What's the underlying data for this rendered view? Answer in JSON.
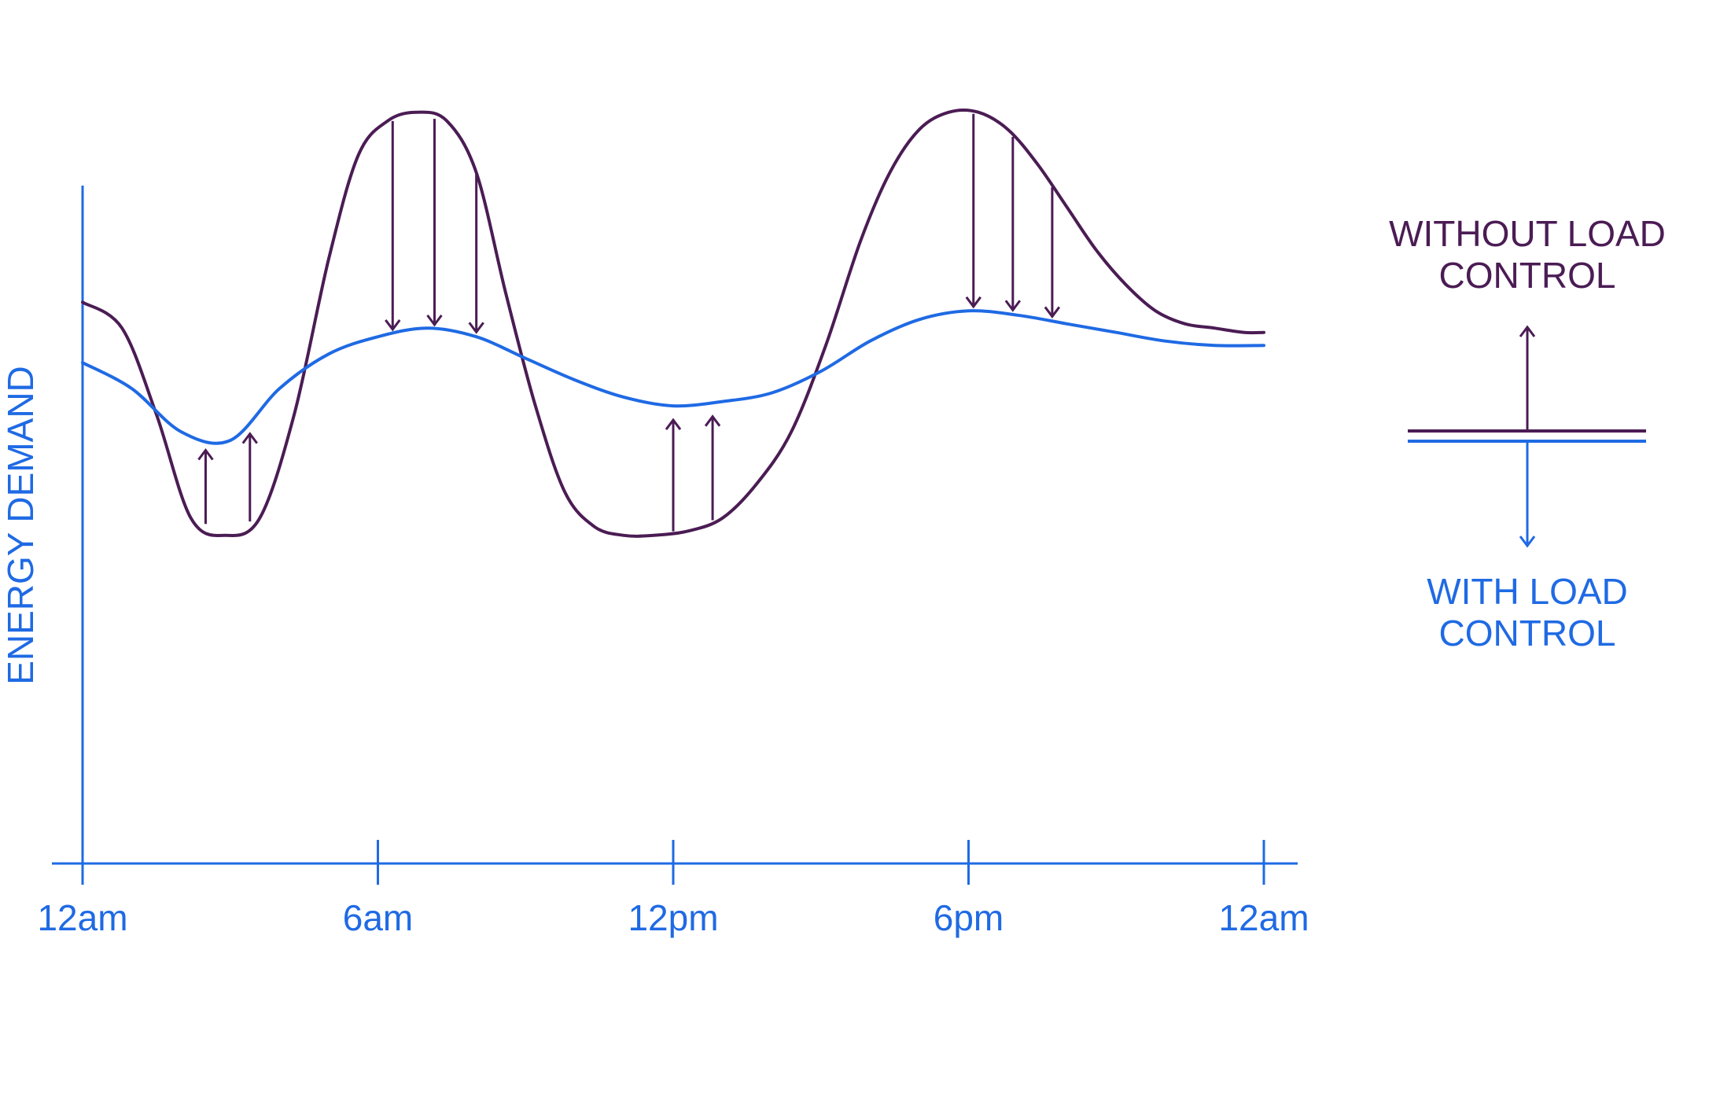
{
  "colors": {
    "without": "#4b1c54",
    "with": "#1f6ae4",
    "axis": "#1f6ae4"
  },
  "chart_data": {
    "type": "line",
    "title": "",
    "xlabel": "",
    "ylabel": "ENERGY DEMAND",
    "x_ticks": [
      "12am",
      "6am",
      "12pm",
      "6pm",
      "12am"
    ],
    "xlim": [
      0,
      24
    ],
    "ylim": [
      0,
      100
    ],
    "grid": false,
    "legend_position": "right",
    "series": [
      {
        "name": "WITHOUT LOAD CONTROL",
        "color": "#4b1c54",
        "x": [
          0,
          0.8,
          1.5,
          2.2,
          2.9,
          3.6,
          4.3,
          5.0,
          5.6,
          6.2,
          6.8,
          7.4,
          8.0,
          8.6,
          9.2,
          9.8,
          10.4,
          11.0,
          11.6,
          12.3,
          13.0,
          13.7,
          14.4,
          15.1,
          15.8,
          16.4,
          17.0,
          17.6,
          18.2,
          18.8,
          19.4,
          20.0,
          20.6,
          21.2,
          21.8,
          22.4,
          23.0,
          23.6,
          24.0
        ],
        "y": [
          65,
          62,
          52,
          40,
          38,
          40,
          52,
          70,
          82,
          86,
          87,
          86,
          80,
          66,
          53,
          43,
          39,
          38,
          38,
          38.5,
          40,
          44,
          50,
          60,
          72,
          80,
          85,
          87,
          87,
          85,
          81,
          76,
          71,
          67,
          64,
          62.5,
          62,
          61.5,
          61.5
        ]
      },
      {
        "name": "WITH LOAD CONTROL",
        "color": "#1f6ae4",
        "x": [
          0,
          1.0,
          2.0,
          3.0,
          4.0,
          5.0,
          6.0,
          7.0,
          8.0,
          9.0,
          10.0,
          11.0,
          12.0,
          13.0,
          14.0,
          15.0,
          16.0,
          17.0,
          18.0,
          19.0,
          20.0,
          21.0,
          22.0,
          23.0,
          24.0
        ],
        "y": [
          58,
          55,
          50,
          49,
          55,
          59,
          61,
          62,
          61,
          58.5,
          56,
          54,
          53,
          53.5,
          54.5,
          57,
          60.5,
          63,
          64,
          63.5,
          62.5,
          61.5,
          60.5,
          60,
          60
        ]
      }
    ],
    "annotations": [
      {
        "type": "arrow-up",
        "x": 2.5
      },
      {
        "type": "arrow-up",
        "x": 3.4
      },
      {
        "type": "arrow-down",
        "x": 6.3
      },
      {
        "type": "arrow-down",
        "x": 7.15
      },
      {
        "type": "arrow-down",
        "x": 8.0
      },
      {
        "type": "arrow-up",
        "x": 12.0
      },
      {
        "type": "arrow-up",
        "x": 12.8
      },
      {
        "type": "arrow-down",
        "x": 18.1
      },
      {
        "type": "arrow-down",
        "x": 18.9
      },
      {
        "type": "arrow-down",
        "x": 19.7
      }
    ]
  },
  "legend": {
    "without_line1": "WITHOUT LOAD",
    "without_line2": "CONTROL",
    "with_line1": "WITH LOAD",
    "with_line2": "CONTROL"
  }
}
